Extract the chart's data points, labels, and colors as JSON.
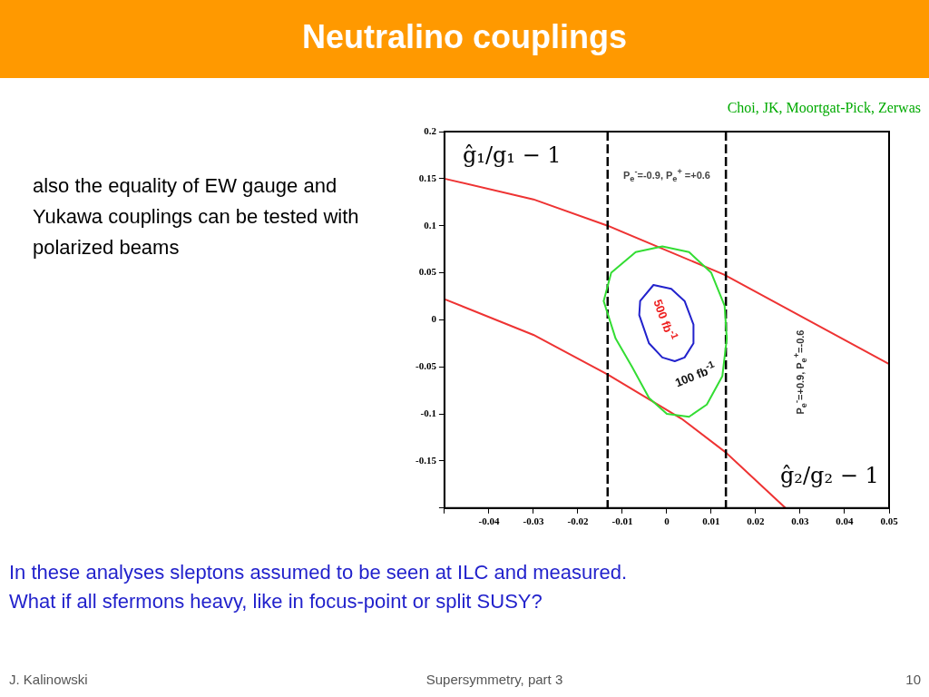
{
  "chart_data": {
    "type": "line",
    "title": "Neutralino couplings",
    "xlabel": "ĝ₂/g₂ − 1",
    "ylabel": "ĝ₁/g₁ − 1",
    "xlim": [
      -0.05,
      0.05
    ],
    "xticks": [
      {
        "value": -0.05,
        "label": null
      },
      -0.04,
      -0.03,
      -0.02,
      -0.01,
      0,
      0.01,
      0.02,
      0.03,
      0.04,
      0.05
    ],
    "ylim": [
      -0.2,
      0.2
    ],
    "yticks": [
      {
        "value": -0.2,
        "label": null
      },
      -0.15,
      -0.1,
      -0.05,
      0,
      0.05,
      0.1,
      0.15,
      0.2
    ],
    "grid": false,
    "marker": "none",
    "series": [
      {
        "color": "#ee3333",
        "x": [
          -0.05,
          -0.03,
          -0.0133,
          0.0129,
          0.05
        ],
        "values": [
          0.15,
          0.128,
          0.1,
          0.048,
          -0.047
        ]
      },
      {
        "color": "#ee3333",
        "x": [
          -0.05,
          -0.03,
          -0.0133,
          0.0033,
          0.0133,
          0.0267
        ],
        "values": [
          0.022,
          -0.016,
          -0.058,
          -0.105,
          -0.141,
          -0.2
        ]
      }
    ],
    "ref_lines": [
      {
        "axis": "x",
        "value": -0.0133,
        "color": "#000000",
        "line_style": "dashed"
      },
      {
        "axis": "x",
        "value": 0.0133,
        "color": "#000000",
        "line_style": "dashed"
      }
    ],
    "annotations": [
      "Choi, JK, Moortgat-Pick, Zerwas",
      "also the equality of EW gauge and Yukawa couplings can be tested with polarized beams",
      "In these analyses sleptons assumed to be seen at ILC and measured.\nWhat if all sfermons heavy, like in focus-point or split SUSY?",
      "J. Kalinowski",
      "Supersymmetry, part 3",
      "10",
      "P$_{e}$$^{-}$=-0.9, P$_{e}$$^{+}$ =+0.6",
      "500 fb$^{-1}$",
      "100 fb$^{-1}$",
      "P$_{e}$$^{-}$=+0.9, P$_{e}$$^{+}$=-0.6"
    ]
  }
}
